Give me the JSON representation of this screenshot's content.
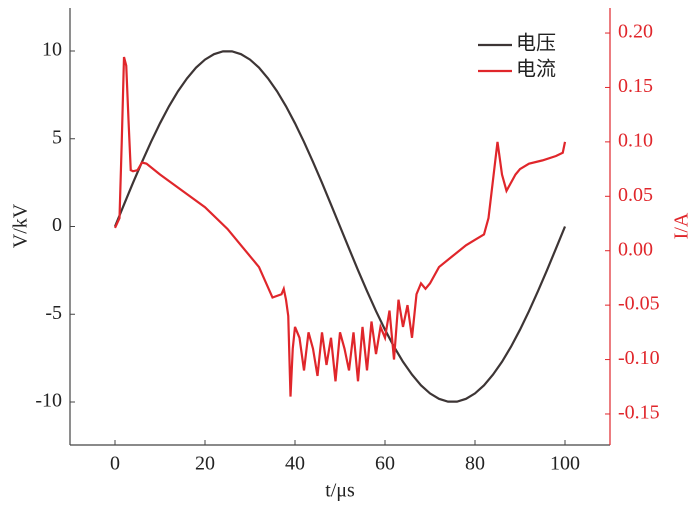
{
  "chart_data": {
    "type": "line",
    "xlabel": "t/μs",
    "ylabel": "V/kV",
    "y2label": "I/A",
    "xlim": [
      -10,
      110
    ],
    "xticks": [
      0,
      20,
      40,
      60,
      80,
      100
    ],
    "ylim": [
      -12.45,
      12.45
    ],
    "yticks": [
      10,
      5,
      0,
      -5,
      -10
    ],
    "y2lim": [
      -0.1785,
      0.223
    ],
    "y2ticks": [
      {
        "value": 0.2,
        "label": "0.20"
      },
      0.15,
      {
        "value": 0.1,
        "label": "0.10"
      },
      0.05,
      {
        "value": 0,
        "label": "0.00"
      },
      -0.05,
      {
        "value": -0.1,
        "label": "-0.10"
      },
      -0.15
    ],
    "legend": "upper right",
    "series": [
      {
        "name": "电压",
        "color": "#3d3535",
        "x": [
          0,
          2,
          4,
          6,
          8,
          10,
          12,
          14,
          16,
          18,
          20,
          22,
          24,
          26,
          28,
          30,
          32,
          34,
          36,
          38,
          40,
          42,
          44,
          46,
          48,
          50,
          52,
          54,
          56,
          58,
          60,
          62,
          64,
          66,
          68,
          70,
          72,
          74,
          76,
          78,
          80,
          82,
          84,
          86,
          88,
          90,
          92,
          94,
          96,
          98,
          100
        ],
        "values": [
          0,
          1.25,
          2.49,
          3.68,
          4.82,
          5.88,
          6.85,
          7.71,
          8.44,
          9.05,
          9.51,
          9.82,
          9.98,
          9.98,
          9.82,
          9.51,
          9.05,
          8.44,
          7.71,
          6.85,
          5.88,
          4.82,
          3.68,
          2.49,
          1.25,
          0,
          -1.25,
          -2.49,
          -3.68,
          -4.82,
          -5.88,
          -6.85,
          -7.71,
          -8.44,
          -9.05,
          -9.51,
          -9.82,
          -9.98,
          -9.98,
          -9.82,
          -9.51,
          -9.05,
          -8.44,
          -7.71,
          -6.85,
          -5.88,
          -4.82,
          -3.68,
          -2.49,
          -1.25,
          0
        ]
      },
      {
        "name": "电流",
        "color": "#e0262b",
        "axis": "y2",
        "x": [
          0,
          1,
          1.5,
          2,
          2.5,
          3,
          3.5,
          4,
          5,
          6,
          7,
          10,
          15,
          20,
          25,
          28,
          30,
          32,
          35,
          37,
          37.5,
          38,
          38.5,
          39,
          39.5,
          40,
          41,
          42,
          43,
          44,
          45,
          46,
          47,
          48,
          49,
          50,
          51,
          52,
          53,
          54,
          55,
          56,
          57,
          58,
          59,
          60,
          61,
          62,
          63,
          64,
          65,
          66,
          67,
          68,
          69,
          70,
          72,
          75,
          78,
          80,
          82,
          83,
          84,
          85,
          86,
          87,
          89,
          90,
          92,
          95,
          98,
          99.5,
          100
        ],
        "values": [
          0.021,
          0.03,
          0.1,
          0.178,
          0.17,
          0.12,
          0.074,
          0.073,
          0.074,
          0.081,
          0.08,
          0.07,
          0.055,
          0.04,
          0.02,
          0.005,
          -0.005,
          -0.015,
          -0.043,
          -0.04,
          -0.035,
          -0.045,
          -0.06,
          -0.134,
          -0.09,
          -0.07,
          -0.08,
          -0.11,
          -0.075,
          -0.09,
          -0.115,
          -0.075,
          -0.105,
          -0.08,
          -0.12,
          -0.075,
          -0.09,
          -0.11,
          -0.075,
          -0.12,
          -0.07,
          -0.11,
          -0.065,
          -0.095,
          -0.07,
          -0.08,
          -0.055,
          -0.1,
          -0.045,
          -0.07,
          -0.05,
          -0.08,
          -0.04,
          -0.03,
          -0.035,
          -0.03,
          -0.015,
          -0.005,
          0.005,
          0.01,
          0.015,
          0.03,
          0.065,
          0.1,
          0.07,
          0.055,
          0.07,
          0.075,
          0.08,
          0.083,
          0.087,
          0.09,
          0.1
        ]
      }
    ]
  }
}
